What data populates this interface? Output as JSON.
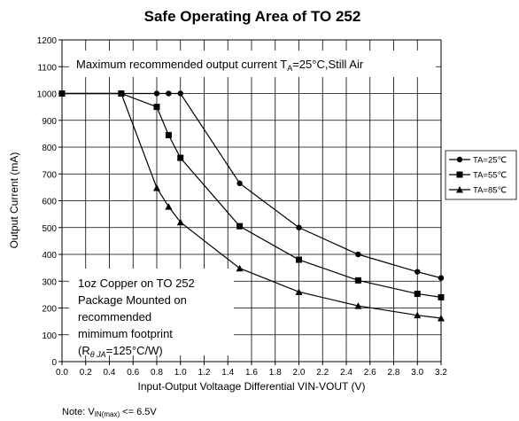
{
  "chart_data": {
    "type": "line",
    "title": "Safe Operating Area of TO 252",
    "x_label": "Input-Output Voltaage Differential VIN-VOUT (V)",
    "y_label": "Output Current (mA)",
    "note": [
      "Note: V",
      "IN(max)",
      " <= 6.5V"
    ],
    "top_annotation": [
      "Maximum recommended output current  T",
      "A",
      "=25°C,Still Air"
    ],
    "box_annotation": [
      "1oz Copper on TO 252",
      "Package Mounted on",
      "recommended",
      "mimimum footprint"
    ],
    "box_annotation_last": [
      "(R",
      "θ JA",
      "=125°C/W)"
    ],
    "x": [
      0,
      0.5,
      0.8,
      0.9,
      1.0,
      1.5,
      2.0,
      2.5,
      3.0,
      3.2
    ],
    "series": [
      {
        "name": "TA=25℃",
        "color": "#000000",
        "marker": "circle",
        "values": [
          1000,
          1000,
          1000,
          1000,
          1000,
          665,
          500,
          400,
          335,
          312
        ]
      },
      {
        "name": "TA=55℃",
        "color": "#000000",
        "marker": "square",
        "values": [
          1000,
          1000,
          950,
          845,
          760,
          505,
          380,
          303,
          253,
          240
        ]
      },
      {
        "name": "TA=85℃",
        "color": "#000000",
        "marker": "triangle",
        "values": [
          1000,
          1000,
          648,
          578,
          520,
          348,
          260,
          208,
          173,
          162
        ]
      }
    ],
    "xlim": [
      0,
      3.2
    ],
    "xticks": [
      {
        "value": 0,
        "label": "0.0"
      },
      0.2,
      0.4,
      0.6,
      0.8,
      {
        "value": 1,
        "label": "1.0"
      },
      1.2,
      1.4,
      1.6,
      1.8,
      {
        "value": 2,
        "label": "2.0"
      },
      2.2,
      2.4,
      2.6,
      2.8,
      {
        "value": 3,
        "label": "3.0"
      },
      3.2
    ],
    "ylim": [
      0,
      1200
    ],
    "yticks": [
      0,
      100,
      200,
      300,
      400,
      500,
      600,
      700,
      800,
      900,
      1000,
      1100,
      1200
    ],
    "grid": true,
    "legend": "right"
  }
}
